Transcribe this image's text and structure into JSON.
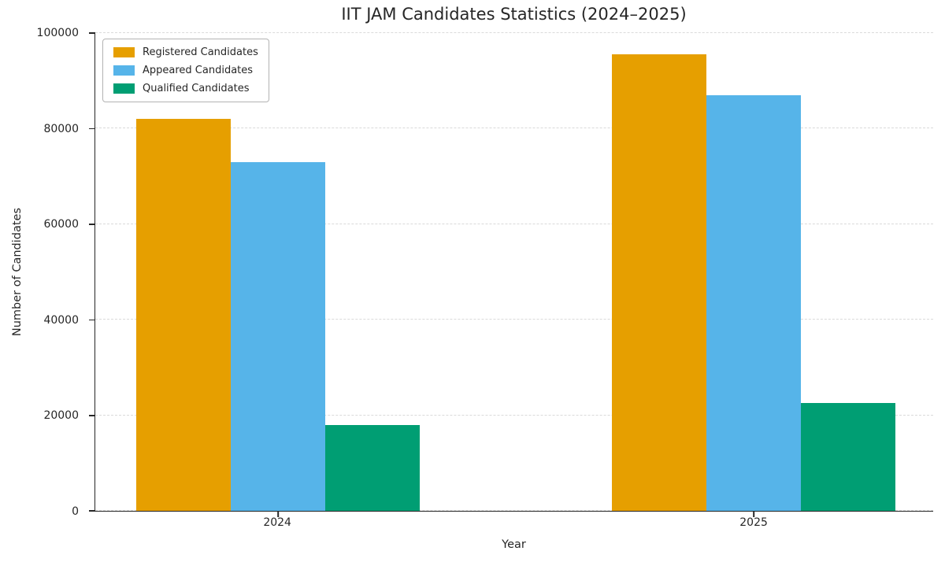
{
  "chart_data": {
    "type": "bar",
    "title": "IIT JAM Candidates Statistics (2024–2025)",
    "xlabel": "Year",
    "ylabel": "Number of Candidates",
    "categories": [
      "2024",
      "2025"
    ],
    "series": [
      {
        "name": "Registered Candidates",
        "color": "#E69F00",
        "values": [
          82000,
          95500
        ]
      },
      {
        "name": "Appeared Candidates",
        "color": "#56B4E9",
        "values": [
          73000,
          87000
        ]
      },
      {
        "name": "Qualified Candidates",
        "color": "#009E73",
        "values": [
          18000,
          22500
        ]
      }
    ],
    "ylim": [
      0,
      100000
    ],
    "yticks": [
      0,
      20000,
      40000,
      60000,
      80000,
      100000
    ],
    "grid": true,
    "grid_style": "dashed",
    "legend_position": "upper left",
    "background_color": "#ffffff",
    "text_color": "#262626"
  }
}
